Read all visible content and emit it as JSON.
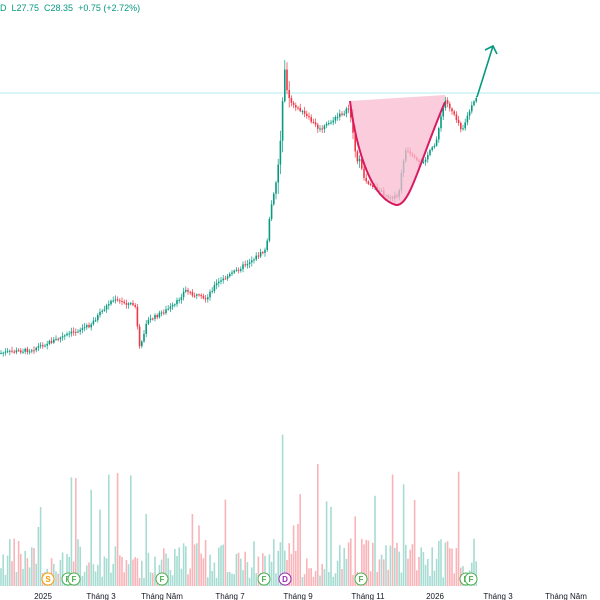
{
  "header": {
    "open_suffix": "D",
    "low": "L27.75",
    "close": "C28.35",
    "change": "+0.75 (+2.72%)"
  },
  "colors": {
    "up": "#089981",
    "down": "#f23645",
    "up_volume": "#a7dcd3",
    "down_volume": "#f9b4b9",
    "pattern_fill": "#f8bbd0",
    "pattern_line": "#d81b60",
    "arrow": "#089981",
    "horizontal_line": "#b2ebf2"
  },
  "chart_data": {
    "type": "candlestick",
    "x_tick_labels": [
      "2025",
      "Tháng 3",
      "Tháng Năm",
      "Tháng 7",
      "Tháng 9",
      "Tháng 11",
      "2026",
      "Tháng 3",
      "Tháng Năm"
    ],
    "event_markers": [
      "S",
      "F",
      "F",
      "F",
      "F",
      "D",
      "F",
      "F",
      "F"
    ],
    "last_close": 28.35,
    "last_change": 0.75,
    "last_change_pct": 2.72,
    "annotations": [
      "cup-and-handle pattern (pink)",
      "breakout arrow (green)",
      "resistance horizontal line"
    ]
  }
}
